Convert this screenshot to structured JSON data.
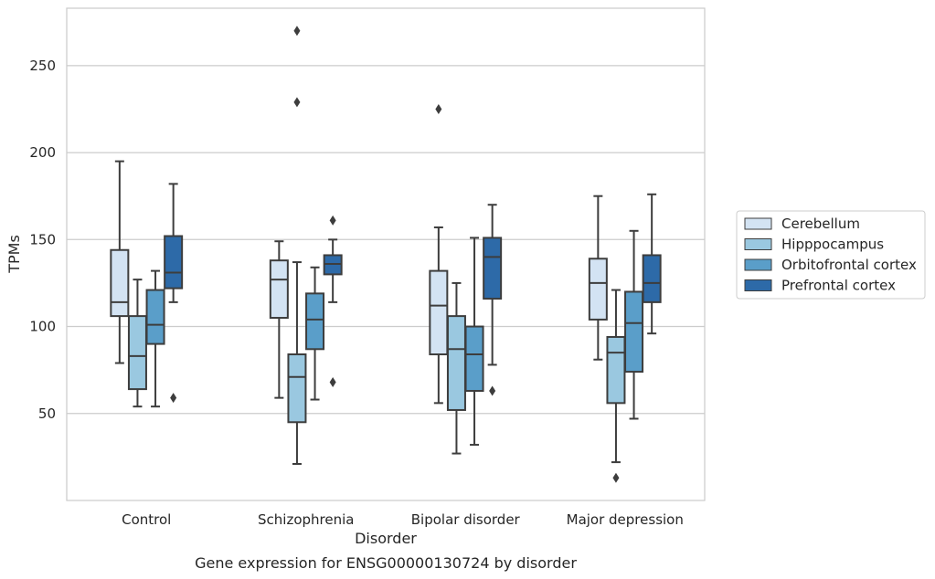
{
  "chart_data": {
    "type": "box",
    "title": "Gene expression for ENSG00000130724 by disorder",
    "xlabel": "Disorder",
    "ylabel": "TPMs",
    "ylim": [
      0,
      283
    ],
    "yticks": [
      50,
      100,
      150,
      200,
      250
    ],
    "grid": "horizontal",
    "legend_position": "right",
    "categories": [
      "Control",
      "Schizophrenia",
      "Bipolar disorder",
      "Major depression"
    ],
    "series": [
      {
        "name": "Cerebellum",
        "color": "#d3e3f3",
        "boxes": [
          {
            "whisker_low": 79,
            "q1": 106,
            "median": 114,
            "q3": 144,
            "whisker_high": 195,
            "outliers": []
          },
          {
            "whisker_low": 59,
            "q1": 105,
            "median": 127,
            "q3": 138,
            "whisker_high": 149,
            "outliers": []
          },
          {
            "whisker_low": 56,
            "q1": 84,
            "median": 112,
            "q3": 132,
            "whisker_high": 157,
            "outliers": [
              225
            ]
          },
          {
            "whisker_low": 81,
            "q1": 104,
            "median": 125,
            "q3": 139,
            "whisker_high": 175,
            "outliers": []
          }
        ]
      },
      {
        "name": "Hipppocampus",
        "color": "#9ac8e0",
        "boxes": [
          {
            "whisker_low": 54,
            "q1": 64,
            "median": 83,
            "q3": 106,
            "whisker_high": 127,
            "outliers": []
          },
          {
            "whisker_low": 21,
            "q1": 45,
            "median": 71,
            "q3": 84,
            "whisker_high": 137,
            "outliers": [
              270,
              229
            ]
          },
          {
            "whisker_low": 27,
            "q1": 52,
            "median": 87,
            "q3": 106,
            "whisker_high": 125,
            "outliers": []
          },
          {
            "whisker_low": 22,
            "q1": 56,
            "median": 85,
            "q3": 94,
            "whisker_high": 121,
            "outliers": [
              13
            ]
          }
        ]
      },
      {
        "name": "Orbitofrontal cortex",
        "color": "#5a9ec9",
        "boxes": [
          {
            "whisker_low": 54,
            "q1": 90,
            "median": 101,
            "q3": 121,
            "whisker_high": 132,
            "outliers": []
          },
          {
            "whisker_low": 58,
            "q1": 87,
            "median": 104,
            "q3": 119,
            "whisker_high": 134,
            "outliers": []
          },
          {
            "whisker_low": 32,
            "q1": 63,
            "median": 84,
            "q3": 100,
            "whisker_high": 151,
            "outliers": []
          },
          {
            "whisker_low": 47,
            "q1": 74,
            "median": 102,
            "q3": 120,
            "whisker_high": 155,
            "outliers": []
          }
        ]
      },
      {
        "name": "Prefrontal cortex",
        "color": "#2d6aa8",
        "boxes": [
          {
            "whisker_low": 114,
            "q1": 122,
            "median": 131,
            "q3": 152,
            "whisker_high": 182,
            "outliers": [
              59
            ]
          },
          {
            "whisker_low": 114,
            "q1": 130,
            "median": 136,
            "q3": 141,
            "whisker_high": 150,
            "outliers": [
              161,
              68
            ]
          },
          {
            "whisker_low": 78,
            "q1": 116,
            "median": 140,
            "q3": 151,
            "whisker_high": 170,
            "outliers": [
              63
            ]
          },
          {
            "whisker_low": 96,
            "q1": 114,
            "median": 125,
            "q3": 141,
            "whisker_high": 176,
            "outliers": []
          }
        ]
      }
    ]
  }
}
